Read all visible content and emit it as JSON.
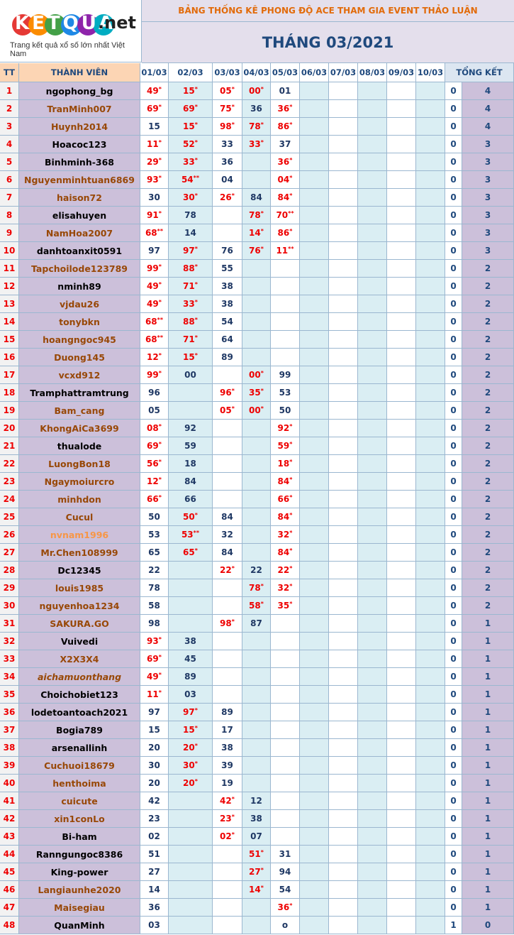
{
  "logo": {
    "brand": "KETQUA",
    "domain": ".net",
    "tagline": "Trang kết quả xổ số lớn nhất Việt Nam"
  },
  "header": {
    "title": "BẢNG THỐNG KÊ PHONG ĐỘ ACE THAM GIA EVENT THẢO LUẬN",
    "subtitle": "THÁNG 03/2021"
  },
  "columns": [
    "TT",
    "THÀNH VIÊN",
    "01/03",
    "02/03",
    "03/03",
    "04/03",
    "05/03",
    "06/03",
    "07/03",
    "08/03",
    "09/03",
    "10/03",
    "TỔNG KẾT"
  ],
  "table": {
    "rows": [
      {
        "tt": "1",
        "name": "ngophong_bg",
        "color": "#000000",
        "cells": [
          [
            "49",
            "*"
          ],
          [
            "15",
            "*"
          ],
          [
            "05",
            "*"
          ],
          [
            "00",
            "*"
          ],
          [
            "01"
          ]
        ],
        "total": [
          "0",
          "4"
        ]
      },
      {
        "tt": "2",
        "name": "TranMinh007",
        "color": "#984807",
        "cells": [
          [
            "69",
            "*"
          ],
          [
            "69",
            "*"
          ],
          [
            "75",
            "*"
          ],
          [
            "36"
          ],
          [
            "36",
            "*"
          ]
        ],
        "total": [
          "0",
          "4"
        ]
      },
      {
        "tt": "3",
        "name": "Huynh2014",
        "color": "#984807",
        "cells": [
          [
            "15"
          ],
          [
            "15",
            "*"
          ],
          [
            "98",
            "*"
          ],
          [
            "78",
            "*"
          ],
          [
            "86",
            "*"
          ]
        ],
        "total": [
          "0",
          "4"
        ]
      },
      {
        "tt": "4",
        "name": "Hoacoc123",
        "color": "#000000",
        "cells": [
          [
            "11",
            "*"
          ],
          [
            "52",
            "*"
          ],
          [
            "33"
          ],
          [
            "33",
            "*"
          ],
          [
            "37"
          ]
        ],
        "total": [
          "0",
          "3"
        ]
      },
      {
        "tt": "5",
        "name": "Binhminh-368",
        "color": "#000000",
        "cells": [
          [
            "29",
            "*"
          ],
          [
            "33",
            "*"
          ],
          [
            "36"
          ],
          null,
          [
            "36",
            "*"
          ]
        ],
        "total": [
          "0",
          "3"
        ]
      },
      {
        "tt": "6",
        "name": "Nguyenminhtuan6869",
        "color": "#984807",
        "cells": [
          [
            "93",
            "*"
          ],
          [
            "54",
            "**"
          ],
          [
            "04"
          ],
          null,
          [
            "04",
            "*"
          ]
        ],
        "total": [
          "0",
          "3"
        ]
      },
      {
        "tt": "7",
        "name": "haison72",
        "color": "#984807",
        "cells": [
          [
            "30"
          ],
          [
            "30",
            "*"
          ],
          [
            "26",
            "*"
          ],
          [
            "84"
          ],
          [
            "84",
            "*"
          ]
        ],
        "total": [
          "0",
          "3"
        ]
      },
      {
        "tt": "8",
        "name": "elisahuyen",
        "color": "#000000",
        "cells": [
          [
            "91",
            "*"
          ],
          [
            "78"
          ],
          null,
          [
            "78",
            "*"
          ],
          [
            "70",
            "**"
          ]
        ],
        "total": [
          "0",
          "3"
        ]
      },
      {
        "tt": "9",
        "name": "NamHoa2007",
        "color": "#984807",
        "cells": [
          [
            "68",
            "**"
          ],
          [
            "14"
          ],
          null,
          [
            "14",
            "*"
          ],
          [
            "86",
            "*"
          ]
        ],
        "total": [
          "0",
          "3"
        ]
      },
      {
        "tt": "10",
        "name": "danhtoanxit0591",
        "color": "#000000",
        "cells": [
          [
            "97"
          ],
          [
            "97",
            "*"
          ],
          [
            "76"
          ],
          [
            "76",
            "*"
          ],
          [
            "11",
            "**"
          ]
        ],
        "total": [
          "0",
          "3"
        ]
      },
      {
        "tt": "11",
        "name": "Tapchoilode123789",
        "color": "#984807",
        "cells": [
          [
            "99",
            "*"
          ],
          [
            "88",
            "*"
          ],
          [
            "55"
          ],
          null,
          null
        ],
        "total": [
          "0",
          "2"
        ]
      },
      {
        "tt": "12",
        "name": "nminh89",
        "color": "#000000",
        "cells": [
          [
            "49",
            "*"
          ],
          [
            "71",
            "*"
          ],
          [
            "38"
          ],
          null,
          null
        ],
        "total": [
          "0",
          "2"
        ]
      },
      {
        "tt": "13",
        "name": "vjdau26",
        "color": "#984807",
        "cells": [
          [
            "49",
            "*"
          ],
          [
            "33",
            "*"
          ],
          [
            "38"
          ],
          null,
          null
        ],
        "total": [
          "0",
          "2"
        ]
      },
      {
        "tt": "14",
        "name": "tonybkn",
        "color": "#984807",
        "cells": [
          [
            "68",
            "**"
          ],
          [
            "88",
            "*"
          ],
          [
            "54"
          ],
          null,
          null
        ],
        "total": [
          "0",
          "2"
        ]
      },
      {
        "tt": "15",
        "name": "hoangngoc945",
        "color": "#984807",
        "cells": [
          [
            "68",
            "**"
          ],
          [
            "71",
            "*"
          ],
          [
            "64"
          ],
          null,
          null
        ],
        "total": [
          "0",
          "2"
        ]
      },
      {
        "tt": "16",
        "name": "Duong145",
        "color": "#984807",
        "cells": [
          [
            "12",
            "*"
          ],
          [
            "15",
            "*"
          ],
          [
            "89"
          ],
          null,
          null
        ],
        "total": [
          "0",
          "2"
        ]
      },
      {
        "tt": "17",
        "name": "vcxd912",
        "color": "#984807",
        "cells": [
          [
            "99",
            "*"
          ],
          [
            "00"
          ],
          null,
          [
            "00",
            "*"
          ],
          [
            "99"
          ]
        ],
        "total": [
          "0",
          "2"
        ]
      },
      {
        "tt": "18",
        "name": "Tramphattramtrung",
        "color": "#000000",
        "cells": [
          [
            "96"
          ],
          null,
          [
            "96",
            "*"
          ],
          [
            "35",
            "*"
          ],
          [
            "53"
          ]
        ],
        "total": [
          "0",
          "2"
        ]
      },
      {
        "tt": "19",
        "name": "Bam_cang",
        "color": "#984807",
        "cells": [
          [
            "05"
          ],
          null,
          [
            "05",
            "*"
          ],
          [
            "00",
            "*"
          ],
          [
            "50"
          ]
        ],
        "total": [
          "0",
          "2"
        ]
      },
      {
        "tt": "20",
        "name": "KhongAiCa3699",
        "color": "#984807",
        "cells": [
          [
            "08",
            "*"
          ],
          [
            "92"
          ],
          null,
          null,
          [
            "92",
            "*"
          ]
        ],
        "total": [
          "0",
          "2"
        ]
      },
      {
        "tt": "21",
        "name": "thualode",
        "color": "#000000",
        "cells": [
          [
            "69",
            "*"
          ],
          [
            "59"
          ],
          null,
          null,
          [
            "59",
            "*"
          ]
        ],
        "total": [
          "0",
          "2"
        ]
      },
      {
        "tt": "22",
        "name": "LuongBon18",
        "color": "#984807",
        "cells": [
          [
            "56",
            "*"
          ],
          [
            "18"
          ],
          null,
          null,
          [
            "18",
            "*"
          ]
        ],
        "total": [
          "0",
          "2"
        ]
      },
      {
        "tt": "23",
        "name": "Ngaymoiurcro",
        "color": "#984807",
        "cells": [
          [
            "12",
            "*"
          ],
          [
            "84"
          ],
          null,
          null,
          [
            "84",
            "*"
          ]
        ],
        "total": [
          "0",
          "2"
        ]
      },
      {
        "tt": "24",
        "name": "minhdon",
        "color": "#984807",
        "cells": [
          [
            "66",
            "*"
          ],
          [
            "66"
          ],
          null,
          null,
          [
            "66",
            "*"
          ]
        ],
        "total": [
          "0",
          "2"
        ]
      },
      {
        "tt": "25",
        "name": "Cucul",
        "color": "#984807",
        "cells": [
          [
            "50"
          ],
          [
            "50",
            "*"
          ],
          [
            "84"
          ],
          null,
          [
            "84",
            "*"
          ]
        ],
        "total": [
          "0",
          "2"
        ]
      },
      {
        "tt": "26",
        "name": "nvnam1996",
        "color": "#f79646",
        "cells": [
          [
            "53"
          ],
          [
            "53",
            "**"
          ],
          [
            "32"
          ],
          null,
          [
            "32",
            "*"
          ]
        ],
        "total": [
          "0",
          "2"
        ]
      },
      {
        "tt": "27",
        "name": "Mr.Chen108999",
        "color": "#984807",
        "cells": [
          [
            "65"
          ],
          [
            "65",
            "*"
          ],
          [
            "84"
          ],
          null,
          [
            "84",
            "*"
          ]
        ],
        "total": [
          "0",
          "2"
        ]
      },
      {
        "tt": "28",
        "name": "Dc12345",
        "color": "#000000",
        "cells": [
          [
            "22"
          ],
          null,
          [
            "22",
            "*"
          ],
          [
            "22"
          ],
          [
            "22",
            "*"
          ]
        ],
        "total": [
          "0",
          "2"
        ]
      },
      {
        "tt": "29",
        "name": "louis1985",
        "color": "#984807",
        "cells": [
          [
            "78"
          ],
          null,
          null,
          [
            "78",
            "*"
          ],
          [
            "32",
            "*"
          ]
        ],
        "total": [
          "0",
          "2"
        ]
      },
      {
        "tt": "30",
        "name": "nguyenhoa1234",
        "color": "#984807",
        "cells": [
          [
            "58"
          ],
          null,
          null,
          [
            "58",
            "*"
          ],
          [
            "35",
            "*"
          ]
        ],
        "total": [
          "0",
          "2"
        ]
      },
      {
        "tt": "31",
        "name": "SAKURA.GO",
        "color": "#984807",
        "cells": [
          [
            "98"
          ],
          null,
          [
            "98",
            "*"
          ],
          [
            "87"
          ],
          null
        ],
        "total": [
          "0",
          "1"
        ]
      },
      {
        "tt": "32",
        "name": "Vuivedi",
        "color": "#000000",
        "cells": [
          [
            "93",
            "*"
          ],
          [
            "38"
          ],
          null,
          null,
          null
        ],
        "total": [
          "0",
          "1"
        ]
      },
      {
        "tt": "33",
        "name": "X2X3X4",
        "color": "#984807",
        "cells": [
          [
            "69",
            "*"
          ],
          [
            "45"
          ],
          null,
          null,
          null
        ],
        "total": [
          "0",
          "1"
        ]
      },
      {
        "tt": "34",
        "name": "aichamuonthang",
        "color": "#984807",
        "italic": true,
        "cells": [
          [
            "49",
            "*"
          ],
          [
            "89"
          ],
          null,
          null,
          null
        ],
        "total": [
          "0",
          "1"
        ]
      },
      {
        "tt": "35",
        "name": "Choichobiet123",
        "color": "#000000",
        "cells": [
          [
            "11",
            "*"
          ],
          [
            "03"
          ],
          null,
          null,
          null
        ],
        "total": [
          "0",
          "1"
        ]
      },
      {
        "tt": "36",
        "name": "lodetoantoach2021",
        "color": "#000000",
        "cells": [
          [
            "97"
          ],
          [
            "97",
            "*"
          ],
          [
            "89"
          ],
          null,
          null
        ],
        "total": [
          "0",
          "1"
        ]
      },
      {
        "tt": "37",
        "name": "Bogia789",
        "color": "#000000",
        "cells": [
          [
            "15"
          ],
          [
            "15",
            "*"
          ],
          [
            "17"
          ],
          null,
          null
        ],
        "total": [
          "0",
          "1"
        ]
      },
      {
        "tt": "38",
        "name": "arsenallinh",
        "color": "#000000",
        "cells": [
          [
            "20"
          ],
          [
            "20",
            "*"
          ],
          [
            "38"
          ],
          null,
          null
        ],
        "total": [
          "0",
          "1"
        ]
      },
      {
        "tt": "39",
        "name": "Cuchuoi18679",
        "color": "#984807",
        "cells": [
          [
            "30"
          ],
          [
            "30",
            "*"
          ],
          [
            "39"
          ],
          null,
          null
        ],
        "total": [
          "0",
          "1"
        ]
      },
      {
        "tt": "40",
        "name": "henthoima",
        "color": "#984807",
        "cells": [
          [
            "20"
          ],
          [
            "20",
            "*"
          ],
          [
            "19"
          ],
          null,
          null
        ],
        "total": [
          "0",
          "1"
        ]
      },
      {
        "tt": "41",
        "name": "cuicute",
        "color": "#984807",
        "cells": [
          [
            "42"
          ],
          null,
          [
            "42",
            "*"
          ],
          [
            "12"
          ],
          null
        ],
        "total": [
          "0",
          "1"
        ]
      },
      {
        "tt": "42",
        "name": "xin1conLo",
        "color": "#984807",
        "cells": [
          [
            "23"
          ],
          null,
          [
            "23",
            "*"
          ],
          [
            "38"
          ],
          null
        ],
        "total": [
          "0",
          "1"
        ]
      },
      {
        "tt": "43",
        "name": "Bi-ham",
        "color": "#000000",
        "cells": [
          [
            "02"
          ],
          null,
          [
            "02",
            "*"
          ],
          [
            "07"
          ],
          null
        ],
        "total": [
          "0",
          "1"
        ]
      },
      {
        "tt": "44",
        "name": "Ranngungoc8386",
        "color": "#000000",
        "cells": [
          [
            "51"
          ],
          null,
          null,
          [
            "51",
            "*"
          ],
          [
            "31"
          ]
        ],
        "total": [
          "0",
          "1"
        ]
      },
      {
        "tt": "45",
        "name": "King-power",
        "color": "#000000",
        "cells": [
          [
            "27"
          ],
          null,
          null,
          [
            "27",
            "*"
          ],
          [
            "94"
          ]
        ],
        "total": [
          "0",
          "1"
        ]
      },
      {
        "tt": "46",
        "name": "Langiaunhe2020",
        "color": "#984807",
        "cells": [
          [
            "14"
          ],
          null,
          null,
          [
            "14",
            "*"
          ],
          [
            "54"
          ]
        ],
        "total": [
          "0",
          "1"
        ]
      },
      {
        "tt": "47",
        "name": "Maisegiau",
        "color": "#984807",
        "cells": [
          [
            "36"
          ],
          null,
          null,
          null,
          [
            "36",
            "*"
          ]
        ],
        "total": [
          "0",
          "1"
        ]
      },
      {
        "tt": "48",
        "name": "QuanMinh",
        "color": "#000000",
        "cells": [
          [
            "03"
          ],
          null,
          null,
          null,
          [
            "o"
          ]
        ],
        "total": [
          "1",
          "0"
        ]
      }
    ]
  }
}
